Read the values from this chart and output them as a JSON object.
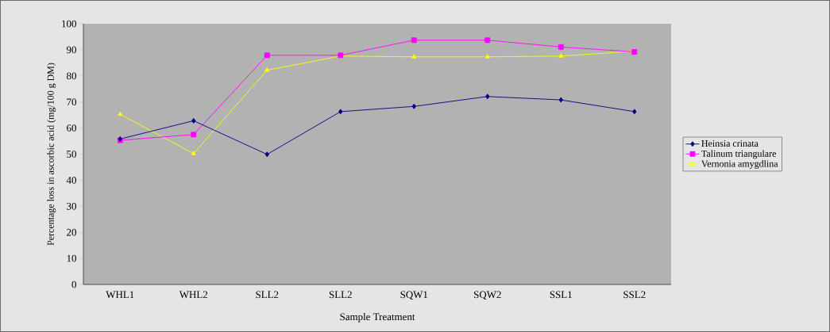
{
  "chart_data": {
    "type": "line",
    "xlabel": "Sample Treatment",
    "ylabel": "Percentage loss in ascorbic acid (mg/100 g DM)",
    "categories": [
      "WHL1",
      "WHL2",
      "SLL2",
      "SLL2",
      "SQW1",
      "SQW2",
      "SSL1",
      "SSL2"
    ],
    "series": [
      {
        "name": "Heinsia crinata",
        "color": "#000080",
        "marker": "diamond",
        "values": [
          55.8,
          62.8,
          49.9,
          66.3,
          68.3,
          72.1,
          70.8,
          66.3
        ]
      },
      {
        "name": "Talinum triangulare",
        "color": "#ff00ff",
        "marker": "square",
        "values": [
          55.3,
          57.5,
          87.9,
          87.9,
          93.7,
          93.7,
          91.1,
          89.2
        ]
      },
      {
        "name": "Vernonia amygdlina",
        "color": "#ffff00",
        "marker": "triangle",
        "values": [
          65.3,
          50.2,
          82.2,
          87.6,
          87.3,
          87.3,
          87.6,
          89.5
        ]
      }
    ],
    "ylim": [
      0,
      100
    ],
    "yticks": [
      0,
      10,
      20,
      30,
      40,
      50,
      60,
      70,
      80,
      90,
      100
    ],
    "grid": false,
    "legend": "right"
  }
}
